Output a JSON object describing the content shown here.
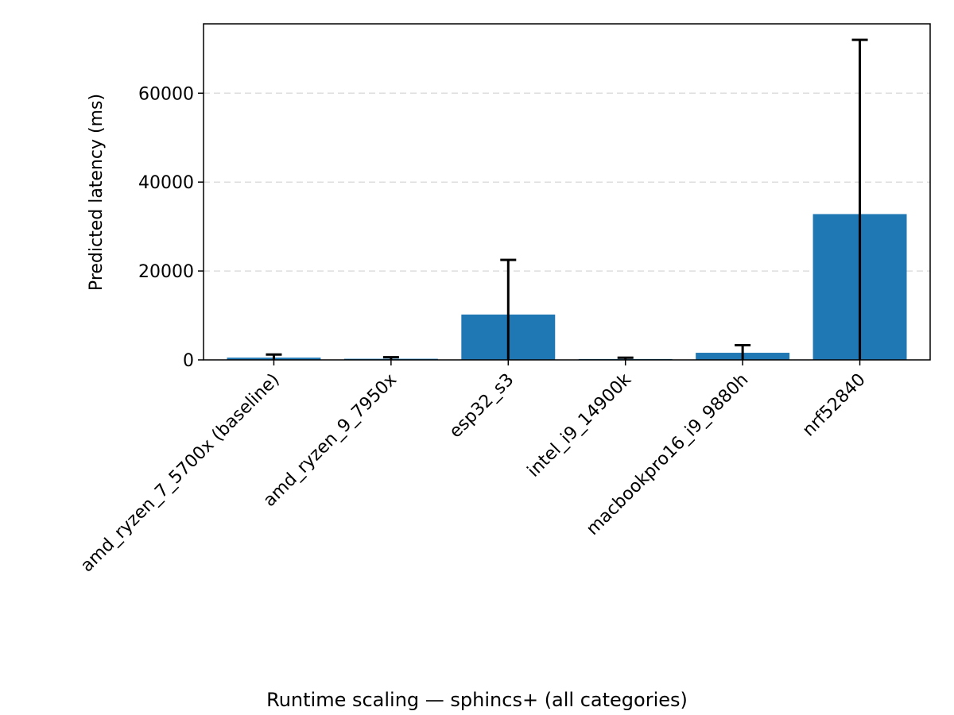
{
  "chart_data": {
    "type": "bar",
    "categories": [
      "amd_ryzen_7_5700x (baseline)",
      "amd_ryzen_9_7950x",
      "esp32_s3",
      "intel_i9_14900k",
      "macbookpro16_i9_9880h",
      "nrf52840"
    ],
    "values": [
      500,
      250,
      10200,
      200,
      1600,
      32800
    ],
    "error_upper": [
      1200,
      600,
      22500,
      500,
      3300,
      72000
    ],
    "error_lower": [
      0,
      0,
      0,
      0,
      0,
      0
    ],
    "xlabel": "",
    "ylabel": "Predicted latency (ms)",
    "ylim": [
      0,
      75600
    ],
    "yticks": [
      0,
      20000,
      40000,
      60000
    ],
    "ytick_labels": [
      "0",
      "20000",
      "40000",
      "60000"
    ],
    "grid": "y dashed",
    "legend": "none",
    "caption": "Runtime scaling — sphincs+ (all categories)",
    "colors": {
      "bar": "#1f77b4",
      "error": "#000000",
      "grid": "#dddddd",
      "axis": "#000000"
    }
  }
}
